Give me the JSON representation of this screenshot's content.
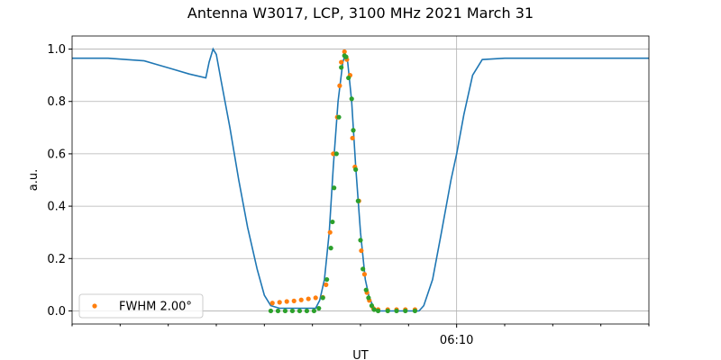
{
  "chart_data": {
    "type": "line",
    "title": "Antenna W3017, LCP, 3100 MHz 2021 March 31",
    "xlabel": "UT",
    "ylabel": "a.u.",
    "xlim": [
      "06:02:00",
      "06:14:00"
    ],
    "xticks": [
      "06:10"
    ],
    "xminorticks": [
      "06:02",
      "06:03",
      "06:04",
      "06:05",
      "06:06",
      "06:07",
      "06:08",
      "06:09",
      "06:11",
      "06:12",
      "06:13",
      "06:14"
    ],
    "ylim": [
      -0.05,
      1.05
    ],
    "yticks": [
      {
        "value": 0,
        "label": "0.0"
      },
      {
        "value": 0.2,
        "label": "0.2"
      },
      {
        "value": 0.4,
        "label": "0.4"
      },
      {
        "value": 0.6,
        "label": "0.6"
      },
      {
        "value": 0.8,
        "label": "0.8"
      },
      {
        "value": 1,
        "label": "1.0"
      }
    ],
    "grid": true,
    "legend": "lower left",
    "series": [
      {
        "type": "line",
        "color": "#1f77b4",
        "x": [
          "06:02:00",
          "06:02:45",
          "06:03:08",
          "06:03:30",
          "06:03:47",
          "06:04:04",
          "06:04:26",
          "06:04:47",
          "06:04:51",
          "06:04:56",
          "06:05:00",
          "06:05:06",
          "06:05:17",
          "06:05:28",
          "06:05:39",
          "06:05:51",
          "06:06:00",
          "06:06:08",
          "06:06:19",
          "06:07:04",
          "06:07:09",
          "06:07:15",
          "06:07:21",
          "06:07:26",
          "06:07:32",
          "06:07:38",
          "06:07:41",
          "06:07:44",
          "06:07:49",
          "06:07:54",
          "06:08:00",
          "06:08:06",
          "06:08:11",
          "06:08:17",
          "06:08:23",
          "06:09:13",
          "06:09:19",
          "06:09:30",
          "06:09:41",
          "06:09:53",
          "06:10:00",
          "06:10:09",
          "06:10:20",
          "06:10:32",
          "06:11:00",
          "06:11:45",
          "06:14:00"
        ],
        "values": [
          0.965,
          0.965,
          0.96,
          0.955,
          0.94,
          0.925,
          0.905,
          0.89,
          0.95,
          1.0,
          0.98,
          0.88,
          0.7,
          0.5,
          0.32,
          0.16,
          0.06,
          0.02,
          0.01,
          0.01,
          0.04,
          0.12,
          0.3,
          0.55,
          0.8,
          0.95,
          0.98,
          0.95,
          0.8,
          0.55,
          0.3,
          0.12,
          0.05,
          0.01,
          0.0,
          0.0,
          0.02,
          0.12,
          0.3,
          0.5,
          0.6,
          0.75,
          0.9,
          0.96,
          0.965,
          0.965,
          0.965
        ]
      },
      {
        "type": "scatter",
        "name": "FWHM 2.00°",
        "color": "#ff7f0e",
        "x": [
          "06:06:10",
          "06:06:19",
          "06:06:28",
          "06:06:37",
          "06:06:46",
          "06:06:55",
          "06:07:04",
          "06:07:13",
          "06:07:17",
          "06:07:22",
          "06:07:26",
          "06:07:31",
          "06:07:34",
          "06:07:36",
          "06:07:40",
          "06:07:43",
          "06:07:47",
          "06:07:50",
          "06:07:53",
          "06:07:58",
          "06:08:01",
          "06:08:05",
          "06:08:08",
          "06:08:11",
          "06:08:16",
          "06:08:22",
          "06:08:34",
          "06:08:45",
          "06:08:56",
          "06:09:08"
        ],
        "values": [
          0.03,
          0.033,
          0.036,
          0.038,
          0.042,
          0.046,
          0.05,
          0.052,
          0.1,
          0.3,
          0.6,
          0.74,
          0.86,
          0.95,
          0.99,
          0.96,
          0.9,
          0.66,
          0.55,
          0.42,
          0.23,
          0.14,
          0.07,
          0.04,
          0.01,
          0.005,
          0.005,
          0.005,
          0.005,
          0.005
        ]
      },
      {
        "type": "scatter",
        "color": "#2ca02c",
        "x": [
          "06:06:08",
          "06:06:17",
          "06:06:26",
          "06:06:35",
          "06:06:44",
          "06:06:53",
          "06:07:02",
          "06:07:08",
          "06:07:13",
          "06:07:18",
          "06:07:23",
          "06:07:25",
          "06:07:27",
          "06:07:30",
          "06:07:33",
          "06:07:36",
          "06:07:40",
          "06:07:42",
          "06:07:45",
          "06:07:49",
          "06:07:51",
          "06:07:54",
          "06:07:57",
          "06:08:00",
          "06:08:03",
          "06:08:07",
          "06:08:10",
          "06:08:14",
          "06:08:17",
          "06:08:22",
          "06:08:34",
          "06:08:45",
          "06:08:56",
          "06:09:08"
        ],
        "values": [
          0,
          0,
          0,
          0,
          0,
          0,
          0,
          0.01,
          0.05,
          0.12,
          0.24,
          0.34,
          0.47,
          0.6,
          0.74,
          0.93,
          0.975,
          0.97,
          0.89,
          0.81,
          0.69,
          0.54,
          0.42,
          0.27,
          0.16,
          0.08,
          0.05,
          0.02,
          0.005,
          0,
          0,
          0,
          0,
          0
        ]
      }
    ]
  }
}
